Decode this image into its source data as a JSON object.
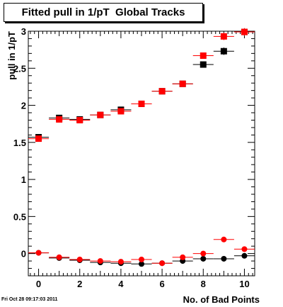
{
  "chart_data": {
    "type": "scatter",
    "title": "Fitted pull in 1/pT  Global Tracks",
    "xlabel": "No. of Bad Points",
    "ylabel": "pull in 1/pT",
    "xlim": [
      -0.5,
      10.5
    ],
    "ylim": [
      -0.3,
      3.0
    ],
    "x_ticks": [
      0,
      2,
      4,
      6,
      8,
      10
    ],
    "y_ticks": [
      0,
      0.5,
      1,
      1.5,
      2,
      2.5,
      3
    ],
    "y_tick_labels": [
      "0",
      "0.5",
      "1",
      "1.5",
      "2",
      "2.5",
      "3"
    ],
    "grid": false,
    "series": [
      {
        "marker": "square",
        "color": "#000000",
        "x": [
          0,
          1,
          2,
          3,
          4,
          5,
          6,
          7,
          8,
          9,
          10
        ],
        "y": [
          1.57,
          1.83,
          1.81,
          1.87,
          1.94,
          2.02,
          2.19,
          2.29,
          2.55,
          2.73,
          2.99
        ],
        "yerr": [
          0.03,
          0.03,
          0.03,
          0.03,
          0.03,
          0.03,
          0.03,
          0.03,
          0.04,
          0.05,
          0.05
        ]
      },
      {
        "marker": "square",
        "color": "#ff0000",
        "x": [
          0,
          1,
          2,
          3,
          4,
          5,
          6,
          7,
          8,
          9,
          10
        ],
        "y": [
          1.55,
          1.81,
          1.8,
          1.87,
          1.92,
          2.02,
          2.19,
          2.29,
          2.67,
          2.93,
          2.99
        ],
        "yerr": [
          0.03,
          0.03,
          0.03,
          0.03,
          0.03,
          0.03,
          0.03,
          0.03,
          0.04,
          0.05,
          0.05
        ]
      },
      {
        "marker": "circle",
        "color": "#000000",
        "x": [
          0,
          1,
          2,
          3,
          4,
          5,
          6,
          7,
          8,
          9,
          10
        ],
        "y": [
          0.01,
          -0.06,
          -0.09,
          -0.12,
          -0.13,
          -0.14,
          -0.13,
          -0.1,
          -0.07,
          -0.07,
          -0.03
        ],
        "yerr": [
          0.02,
          0.02,
          0.02,
          0.02,
          0.02,
          0.02,
          0.02,
          0.02,
          0.02,
          0.02,
          0.02
        ]
      },
      {
        "marker": "circle",
        "color": "#ff0000",
        "x": [
          0,
          1,
          2,
          3,
          4,
          5,
          6,
          7,
          8,
          9,
          10
        ],
        "y": [
          0.01,
          -0.05,
          -0.08,
          -0.1,
          -0.11,
          -0.08,
          -0.13,
          -0.05,
          0.0,
          0.19,
          0.06
        ],
        "yerr": [
          0.02,
          0.02,
          0.02,
          0.02,
          0.02,
          0.02,
          0.02,
          0.02,
          0.02,
          0.03,
          0.03
        ]
      }
    ]
  },
  "footer": {
    "timestamp": "Fri Oct 28 09:17:03 2011"
  }
}
